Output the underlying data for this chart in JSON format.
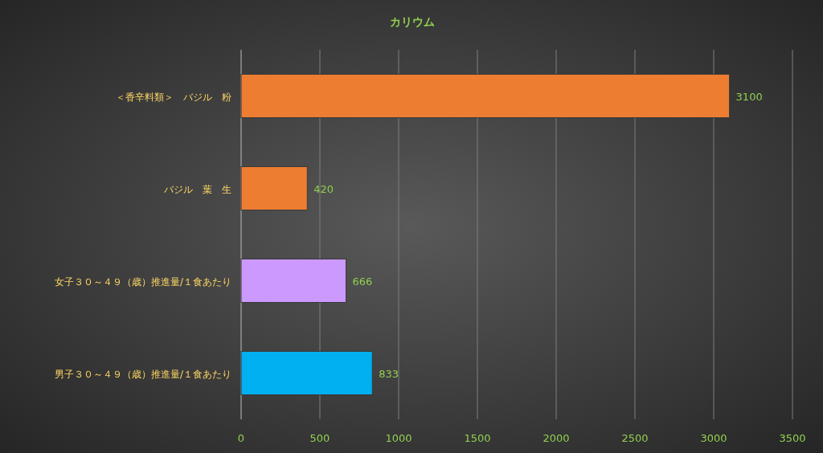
{
  "chart_data": {
    "type": "bar",
    "orientation": "horizontal",
    "title": "カリウム",
    "categories": [
      "＜香辛料類＞　バジル　粉",
      "バジル　葉　生",
      "女子３０～４９（歳）推進量/１食あたり",
      "男子３０～４９（歳）推進量/１食あたり"
    ],
    "values": [
      3100,
      420,
      666,
      833
    ],
    "colors": [
      "#ed7d31",
      "#ed7d31",
      "#cc99ff",
      "#00b0f0"
    ],
    "xlim": [
      0,
      3500
    ],
    "xticks": [
      0,
      500,
      1000,
      1500,
      2000,
      2500,
      3000,
      3500
    ],
    "grid": "x",
    "data_labels": true
  }
}
